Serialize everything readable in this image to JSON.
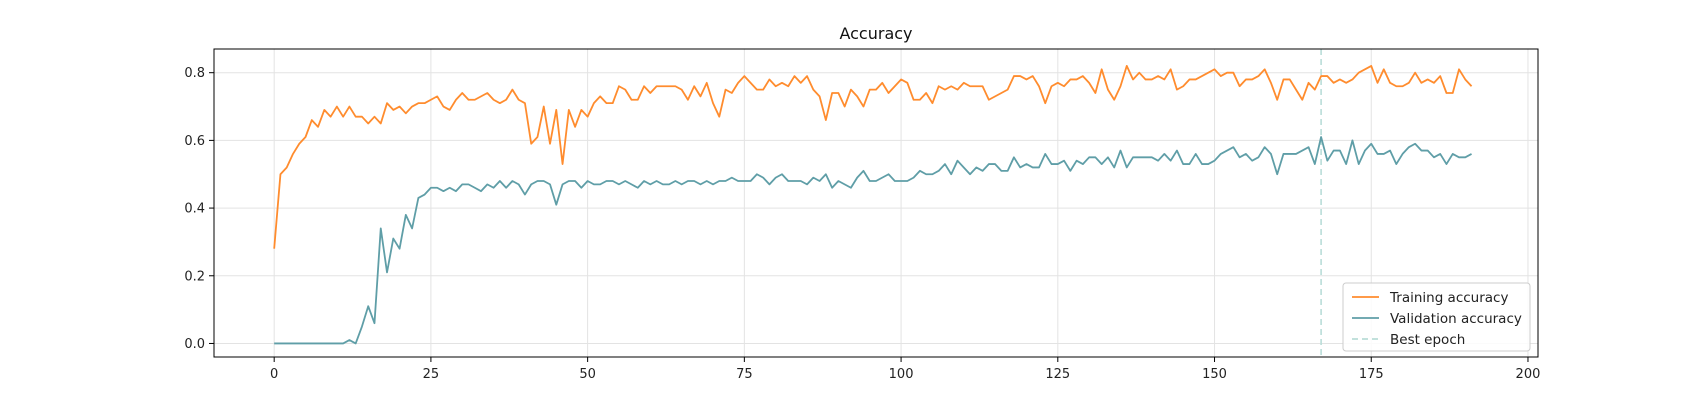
{
  "chart_data": {
    "type": "line",
    "title": "Accuracy",
    "xlabel": "",
    "ylabel": "",
    "xlim": [
      -9.6,
      201.6
    ],
    "ylim": [
      -0.04,
      0.87
    ],
    "xticks": [
      0,
      25,
      50,
      75,
      100,
      125,
      150,
      175,
      200
    ],
    "yticks": [
      0.0,
      0.2,
      0.4,
      0.6,
      0.8
    ],
    "ytick_labels": [
      "0.0",
      "0.2",
      "0.4",
      "0.6",
      "0.8"
    ],
    "grid": true,
    "legend_position": "lower-right",
    "best_epoch": {
      "name": "Best epoch",
      "x": 167,
      "color": "#b9ddd8"
    },
    "series": [
      {
        "name": "Training accuracy",
        "color": "#ff8c2e",
        "values": [
          0.28,
          0.5,
          0.52,
          0.56,
          0.59,
          0.61,
          0.66,
          0.64,
          0.69,
          0.67,
          0.7,
          0.67,
          0.7,
          0.67,
          0.67,
          0.65,
          0.67,
          0.65,
          0.71,
          0.69,
          0.7,
          0.68,
          0.7,
          0.71,
          0.71,
          0.72,
          0.73,
          0.7,
          0.69,
          0.72,
          0.74,
          0.72,
          0.72,
          0.73,
          0.74,
          0.72,
          0.71,
          0.72,
          0.75,
          0.72,
          0.71,
          0.59,
          0.61,
          0.7,
          0.59,
          0.69,
          0.53,
          0.69,
          0.64,
          0.69,
          0.67,
          0.71,
          0.73,
          0.71,
          0.71,
          0.76,
          0.75,
          0.72,
          0.72,
          0.76,
          0.74,
          0.76,
          0.76,
          0.76,
          0.76,
          0.75,
          0.72,
          0.76,
          0.73,
          0.77,
          0.71,
          0.67,
          0.75,
          0.74,
          0.77,
          0.79,
          0.77,
          0.75,
          0.75,
          0.78,
          0.76,
          0.77,
          0.76,
          0.79,
          0.77,
          0.79,
          0.75,
          0.73,
          0.66,
          0.74,
          0.74,
          0.7,
          0.75,
          0.73,
          0.7,
          0.75,
          0.75,
          0.77,
          0.74,
          0.76,
          0.78,
          0.77,
          0.72,
          0.72,
          0.74,
          0.71,
          0.76,
          0.75,
          0.76,
          0.75,
          0.77,
          0.76,
          0.76,
          0.76,
          0.72,
          0.73,
          0.74,
          0.75,
          0.79,
          0.79,
          0.78,
          0.79,
          0.76,
          0.71,
          0.76,
          0.77,
          0.76,
          0.78,
          0.78,
          0.79,
          0.77,
          0.74,
          0.81,
          0.75,
          0.72,
          0.76,
          0.82,
          0.78,
          0.8,
          0.78,
          0.78,
          0.79,
          0.78,
          0.81,
          0.75,
          0.76,
          0.78,
          0.78,
          0.79,
          0.8,
          0.81,
          0.79,
          0.8,
          0.8,
          0.76,
          0.78,
          0.78,
          0.79,
          0.81,
          0.77,
          0.72,
          0.78,
          0.78,
          0.75,
          0.72,
          0.77,
          0.75,
          0.79,
          0.79,
          0.77,
          0.78,
          0.77,
          0.78,
          0.8,
          0.81,
          0.82,
          0.77,
          0.81,
          0.77,
          0.76,
          0.76,
          0.77,
          0.8,
          0.77,
          0.78,
          0.77,
          0.79,
          0.74,
          0.74,
          0.81,
          0.78,
          0.76
        ]
      },
      {
        "name": "Validation accuracy",
        "color": "#5f9ea7",
        "values": [
          0.0,
          0.0,
          0.0,
          0.0,
          0.0,
          0.0,
          0.0,
          0.0,
          0.0,
          0.0,
          0.0,
          0.0,
          0.01,
          0.0,
          0.05,
          0.11,
          0.06,
          0.34,
          0.21,
          0.31,
          0.28,
          0.38,
          0.34,
          0.43,
          0.44,
          0.46,
          0.46,
          0.45,
          0.46,
          0.45,
          0.47,
          0.47,
          0.46,
          0.45,
          0.47,
          0.46,
          0.48,
          0.46,
          0.48,
          0.47,
          0.44,
          0.47,
          0.48,
          0.48,
          0.47,
          0.41,
          0.47,
          0.48,
          0.48,
          0.46,
          0.48,
          0.47,
          0.47,
          0.48,
          0.48,
          0.47,
          0.48,
          0.47,
          0.46,
          0.48,
          0.47,
          0.48,
          0.47,
          0.47,
          0.48,
          0.47,
          0.48,
          0.48,
          0.47,
          0.48,
          0.47,
          0.48,
          0.48,
          0.49,
          0.48,
          0.48,
          0.48,
          0.5,
          0.49,
          0.47,
          0.49,
          0.5,
          0.48,
          0.48,
          0.48,
          0.47,
          0.49,
          0.48,
          0.5,
          0.46,
          0.48,
          0.47,
          0.46,
          0.49,
          0.51,
          0.48,
          0.48,
          0.49,
          0.5,
          0.48,
          0.48,
          0.48,
          0.49,
          0.51,
          0.5,
          0.5,
          0.51,
          0.53,
          0.5,
          0.54,
          0.52,
          0.5,
          0.52,
          0.51,
          0.53,
          0.53,
          0.51,
          0.51,
          0.55,
          0.52,
          0.53,
          0.52,
          0.52,
          0.56,
          0.53,
          0.53,
          0.54,
          0.51,
          0.54,
          0.53,
          0.55,
          0.55,
          0.53,
          0.55,
          0.52,
          0.57,
          0.52,
          0.55,
          0.55,
          0.55,
          0.55,
          0.54,
          0.56,
          0.54,
          0.57,
          0.53,
          0.53,
          0.56,
          0.53,
          0.53,
          0.54,
          0.56,
          0.57,
          0.58,
          0.55,
          0.56,
          0.54,
          0.55,
          0.58,
          0.56,
          0.5,
          0.56,
          0.56,
          0.56,
          0.57,
          0.58,
          0.53,
          0.61,
          0.54,
          0.57,
          0.57,
          0.53,
          0.6,
          0.53,
          0.57,
          0.59,
          0.56,
          0.56,
          0.57,
          0.53,
          0.56,
          0.58,
          0.59,
          0.57,
          0.57,
          0.55,
          0.56,
          0.53,
          0.56,
          0.55,
          0.55,
          0.56
        ]
      }
    ]
  }
}
